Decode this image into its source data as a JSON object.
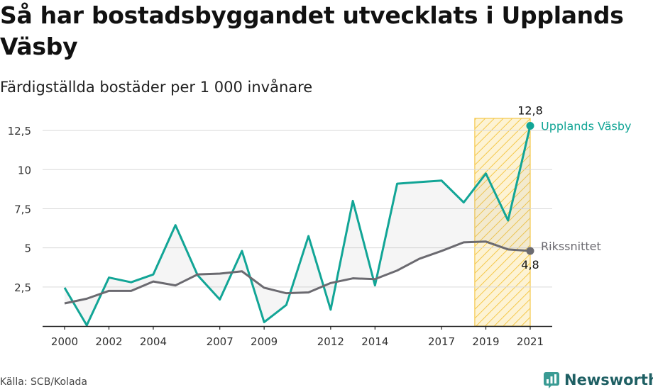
{
  "title": "Så har bostadsbyggandet utvecklats i Upplands Väsby",
  "subtitle": "Färdigställda bostäder per 1 000 invånare",
  "source": "Källa: SCB/Kolada",
  "brand": {
    "name": "Newsworthy",
    "icon": "newsworthy-logo-icon"
  },
  "colors": {
    "primary": "#12a596",
    "secondary": "#6b6a70",
    "highlight": "#f5c84a",
    "grid": "#d9d9d9"
  },
  "chart_data": {
    "type": "line",
    "x": [
      2000,
      2001,
      2002,
      2003,
      2004,
      2005,
      2006,
      2007,
      2008,
      2009,
      2010,
      2011,
      2012,
      2013,
      2014,
      2015,
      2016,
      2017,
      2018,
      2019,
      2020,
      2021
    ],
    "xticks": [
      "2000",
      "2002",
      "2004",
      "2007",
      "2009",
      "2012",
      "2014",
      "2017",
      "2019",
      "2021"
    ],
    "yticks": [
      "2,5",
      "5",
      "7,5",
      "10",
      "12,5"
    ],
    "ylim": [
      0,
      13.5
    ],
    "highlight_range": [
      2018.5,
      2021
    ],
    "series": [
      {
        "name": "Upplands Väsby",
        "values": [
          2.45,
          0.05,
          3.1,
          2.8,
          3.3,
          6.45,
          3.25,
          1.7,
          4.8,
          0.25,
          1.35,
          5.75,
          1.05,
          8.0,
          2.6,
          9.1,
          9.2,
          9.3,
          7.9,
          9.75,
          6.75,
          12.8
        ]
      },
      {
        "name": "Rikssnittet",
        "values": [
          1.45,
          1.75,
          2.25,
          2.25,
          2.85,
          2.6,
          3.3,
          3.35,
          3.5,
          2.45,
          2.1,
          2.15,
          2.75,
          3.05,
          3.0,
          3.55,
          4.3,
          4.8,
          5.35,
          5.4,
          4.9,
          4.8
        ]
      }
    ],
    "end_labels": {
      "primary_value": "12,8",
      "secondary_value": "4,8"
    }
  }
}
